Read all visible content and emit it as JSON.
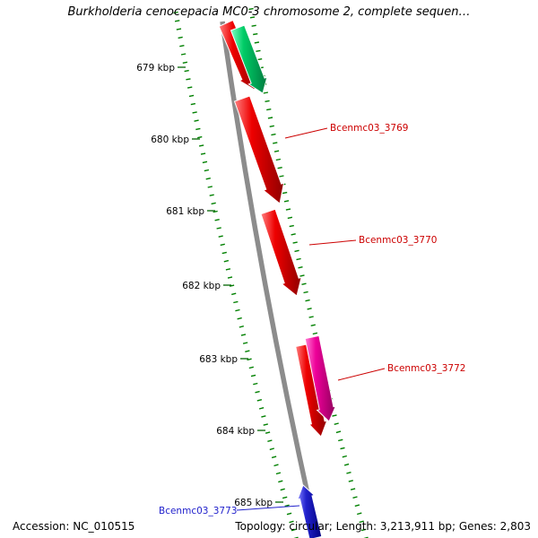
{
  "title": "Burkholderia cenocepacia MC0-3 chromosome 2, complete sequen…",
  "colors": {
    "red": "#e60000",
    "green": "#00cc66",
    "magenta": "#ee0099",
    "blue": "#2222cc",
    "label_red": "#cc0000",
    "label_blue": "#2222cc",
    "backbone_gray": "#8c8c8c",
    "tick_green": "#008000"
  },
  "ruler": {
    "labels": [
      "679 kbp",
      "680 kbp",
      "681 kbp",
      "682 kbp",
      "683 kbp",
      "684 kbp",
      "685 kbp"
    ]
  },
  "genes": [
    {
      "label": "Bcenmc03_3769"
    },
    {
      "label": "Bcenmc03_3770"
    },
    {
      "label": "Bcenmc03_3772"
    },
    {
      "label": "Bcenmc03_3773"
    }
  ],
  "footer": {
    "accession": "Accession: NC_010515",
    "topology": "Topology: circular; Length: 3,213,911 bp; Genes: 2,803"
  }
}
